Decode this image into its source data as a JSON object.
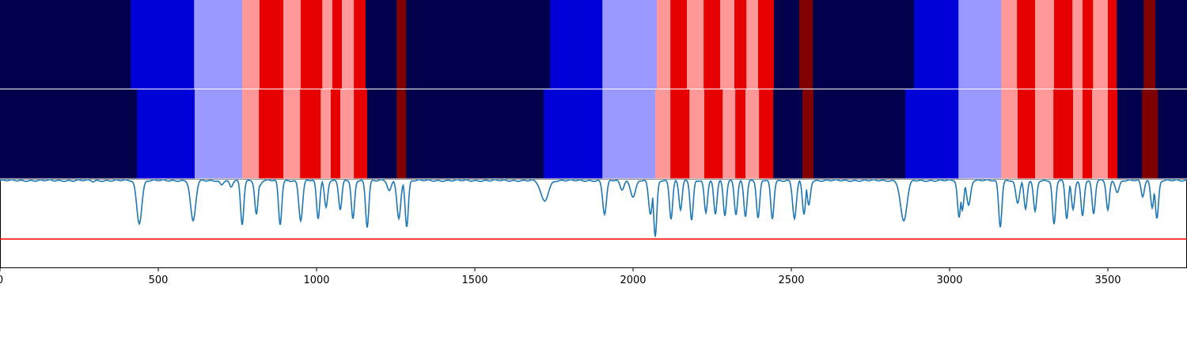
{
  "chart_data": [
    {
      "type": "heatmap",
      "title": "",
      "x_range": [
        0,
        3750
      ],
      "segments": [
        {
          "start": 0,
          "end": 413,
          "class": "navy"
        },
        {
          "start": 413,
          "end": 613,
          "class": "blue"
        },
        {
          "start": 613,
          "end": 765,
          "class": "lavender"
        },
        {
          "start": 765,
          "end": 820,
          "class": "pink"
        },
        {
          "start": 820,
          "end": 895,
          "class": "red"
        },
        {
          "start": 895,
          "end": 950,
          "class": "pink"
        },
        {
          "start": 950,
          "end": 1018,
          "class": "red"
        },
        {
          "start": 1018,
          "end": 1050,
          "class": "pink"
        },
        {
          "start": 1050,
          "end": 1080,
          "class": "red"
        },
        {
          "start": 1080,
          "end": 1118,
          "class": "pink"
        },
        {
          "start": 1118,
          "end": 1155,
          "class": "red"
        },
        {
          "start": 1155,
          "end": 1253,
          "class": "navy"
        },
        {
          "start": 1253,
          "end": 1283,
          "class": "maroon"
        },
        {
          "start": 1283,
          "end": 1738,
          "class": "navy"
        },
        {
          "start": 1738,
          "end": 1903,
          "class": "blue"
        },
        {
          "start": 1903,
          "end": 2075,
          "class": "lavender"
        },
        {
          "start": 2075,
          "end": 2118,
          "class": "pink"
        },
        {
          "start": 2118,
          "end": 2170,
          "class": "red"
        },
        {
          "start": 2170,
          "end": 2223,
          "class": "pink"
        },
        {
          "start": 2223,
          "end": 2275,
          "class": "red"
        },
        {
          "start": 2275,
          "end": 2320,
          "class": "pink"
        },
        {
          "start": 2320,
          "end": 2358,
          "class": "red"
        },
        {
          "start": 2358,
          "end": 2395,
          "class": "pink"
        },
        {
          "start": 2395,
          "end": 2445,
          "class": "red"
        },
        {
          "start": 2445,
          "end": 2525,
          "class": "navy"
        },
        {
          "start": 2525,
          "end": 2568,
          "class": "maroon"
        },
        {
          "start": 2568,
          "end": 2888,
          "class": "navy"
        },
        {
          "start": 2888,
          "end": 3028,
          "class": "blue"
        },
        {
          "start": 3028,
          "end": 3163,
          "class": "lavender"
        },
        {
          "start": 3163,
          "end": 3213,
          "class": "pink"
        },
        {
          "start": 3213,
          "end": 3270,
          "class": "red"
        },
        {
          "start": 3270,
          "end": 3330,
          "class": "pink"
        },
        {
          "start": 3330,
          "end": 3388,
          "class": "red"
        },
        {
          "start": 3388,
          "end": 3420,
          "class": "pink"
        },
        {
          "start": 3420,
          "end": 3453,
          "class": "red"
        },
        {
          "start": 3453,
          "end": 3500,
          "class": "pink"
        },
        {
          "start": 3500,
          "end": 3528,
          "class": "red"
        },
        {
          "start": 3528,
          "end": 3613,
          "class": "navy"
        },
        {
          "start": 3613,
          "end": 3650,
          "class": "maroon"
        },
        {
          "start": 3650,
          "end": 3750,
          "class": "navy"
        }
      ]
    },
    {
      "type": "heatmap",
      "title": "",
      "x_range": [
        0,
        3750
      ],
      "segments": [
        {
          "start": 0,
          "end": 433,
          "class": "navy"
        },
        {
          "start": 433,
          "end": 615,
          "class": "blue"
        },
        {
          "start": 615,
          "end": 765,
          "class": "lavender"
        },
        {
          "start": 765,
          "end": 818,
          "class": "pink"
        },
        {
          "start": 818,
          "end": 895,
          "class": "red"
        },
        {
          "start": 895,
          "end": 948,
          "class": "pink"
        },
        {
          "start": 948,
          "end": 1013,
          "class": "red"
        },
        {
          "start": 1013,
          "end": 1045,
          "class": "pink"
        },
        {
          "start": 1045,
          "end": 1075,
          "class": "red"
        },
        {
          "start": 1075,
          "end": 1118,
          "class": "pink"
        },
        {
          "start": 1118,
          "end": 1160,
          "class": "red"
        },
        {
          "start": 1160,
          "end": 1253,
          "class": "navy"
        },
        {
          "start": 1253,
          "end": 1283,
          "class": "maroon"
        },
        {
          "start": 1283,
          "end": 1718,
          "class": "navy"
        },
        {
          "start": 1718,
          "end": 1903,
          "class": "blue"
        },
        {
          "start": 1903,
          "end": 2070,
          "class": "lavender"
        },
        {
          "start": 2070,
          "end": 2118,
          "class": "pink"
        },
        {
          "start": 2118,
          "end": 2178,
          "class": "red"
        },
        {
          "start": 2178,
          "end": 2225,
          "class": "pink"
        },
        {
          "start": 2225,
          "end": 2283,
          "class": "red"
        },
        {
          "start": 2283,
          "end": 2323,
          "class": "pink"
        },
        {
          "start": 2323,
          "end": 2355,
          "class": "red"
        },
        {
          "start": 2355,
          "end": 2398,
          "class": "pink"
        },
        {
          "start": 2398,
          "end": 2443,
          "class": "red"
        },
        {
          "start": 2443,
          "end": 2535,
          "class": "navy"
        },
        {
          "start": 2535,
          "end": 2570,
          "class": "maroon"
        },
        {
          "start": 2570,
          "end": 2860,
          "class": "navy"
        },
        {
          "start": 2860,
          "end": 3028,
          "class": "blue"
        },
        {
          "start": 3028,
          "end": 3163,
          "class": "lavender"
        },
        {
          "start": 3163,
          "end": 3215,
          "class": "pink"
        },
        {
          "start": 3215,
          "end": 3270,
          "class": "red"
        },
        {
          "start": 3270,
          "end": 3328,
          "class": "pink"
        },
        {
          "start": 3328,
          "end": 3390,
          "class": "red"
        },
        {
          "start": 3390,
          "end": 3420,
          "class": "pink"
        },
        {
          "start": 3420,
          "end": 3450,
          "class": "red"
        },
        {
          "start": 3450,
          "end": 3500,
          "class": "pink"
        },
        {
          "start": 3500,
          "end": 3530,
          "class": "red"
        },
        {
          "start": 3530,
          "end": 3608,
          "class": "navy"
        },
        {
          "start": 3608,
          "end": 3658,
          "class": "maroon"
        },
        {
          "start": 3658,
          "end": 3750,
          "class": "navy"
        }
      ]
    },
    {
      "type": "line",
      "title": "",
      "xlabel": "",
      "ylabel": "",
      "xlim": [
        0,
        3750
      ],
      "ylim": [
        0,
        1
      ],
      "grid": false,
      "xticks": [
        0,
        500,
        1000,
        1500,
        2000,
        2500,
        3000,
        3500
      ],
      "xtick_labels": [
        "0",
        "500",
        "1000",
        "1500",
        "2000",
        "2500",
        "3000",
        "3500"
      ],
      "threshold": 0.32,
      "baseline": 0.98,
      "series": [
        {
          "color": "#1f77b4",
          "dips": [
            [
              295,
              0.97,
              4
            ],
            [
              440,
              0.5,
              8
            ],
            [
              610,
              0.52,
              8
            ],
            [
              700,
              0.93,
              5
            ],
            [
              730,
              0.9,
              5
            ],
            [
              765,
              0.48,
              5
            ],
            [
              810,
              0.6,
              5
            ],
            [
              820,
              0.92,
              5
            ],
            [
              885,
              0.48,
              5
            ],
            [
              950,
              0.53,
              6
            ],
            [
              1005,
              0.55,
              5
            ],
            [
              1030,
              0.68,
              5
            ],
            [
              1075,
              0.65,
              5
            ],
            [
              1115,
              0.54,
              5
            ],
            [
              1160,
              0.46,
              5
            ],
            [
              1230,
              0.86,
              6
            ],
            [
              1260,
              0.55,
              6
            ],
            [
              1285,
              0.46,
              5
            ],
            [
              1720,
              0.75,
              12
            ],
            [
              1910,
              0.6,
              6
            ],
            [
              1965,
              0.88,
              6
            ],
            [
              2000,
              0.8,
              8
            ],
            [
              2055,
              0.6,
              6
            ],
            [
              2070,
              0.34,
              5
            ],
            [
              2120,
              0.55,
              5
            ],
            [
              2150,
              0.65,
              5
            ],
            [
              2185,
              0.53,
              5
            ],
            [
              2230,
              0.62,
              5
            ],
            [
              2260,
              0.6,
              5
            ],
            [
              2290,
              0.58,
              5
            ],
            [
              2325,
              0.6,
              5
            ],
            [
              2355,
              0.58,
              5
            ],
            [
              2395,
              0.55,
              5
            ],
            [
              2440,
              0.55,
              5
            ],
            [
              2510,
              0.55,
              6
            ],
            [
              2540,
              0.6,
              5
            ],
            [
              2555,
              0.7,
              5
            ],
            [
              2855,
              0.52,
              10
            ],
            [
              3030,
              0.56,
              5
            ],
            [
              3040,
              0.65,
              5
            ],
            [
              3060,
              0.7,
              6
            ],
            [
              3160,
              0.46,
              5
            ],
            [
              3215,
              0.72,
              6
            ],
            [
              3240,
              0.65,
              5
            ],
            [
              3270,
              0.63,
              5
            ],
            [
              3330,
              0.48,
              5
            ],
            [
              3370,
              0.55,
              5
            ],
            [
              3390,
              0.65,
              5
            ],
            [
              3420,
              0.58,
              5
            ],
            [
              3455,
              0.6,
              5
            ],
            [
              3500,
              0.65,
              5
            ],
            [
              3530,
              0.85,
              6
            ],
            [
              3610,
              0.8,
              5
            ],
            [
              3640,
              0.68,
              5
            ],
            [
              3655,
              0.55,
              5
            ]
          ]
        }
      ]
    }
  ],
  "colors": {
    "navy": "#00004c",
    "blue": "#0000d9",
    "lavender": "#9999ff",
    "pink": "#ff9999",
    "red": "#e60000",
    "maroon": "#800000",
    "line": "#1f77b4",
    "threshold": "#ff0000"
  }
}
